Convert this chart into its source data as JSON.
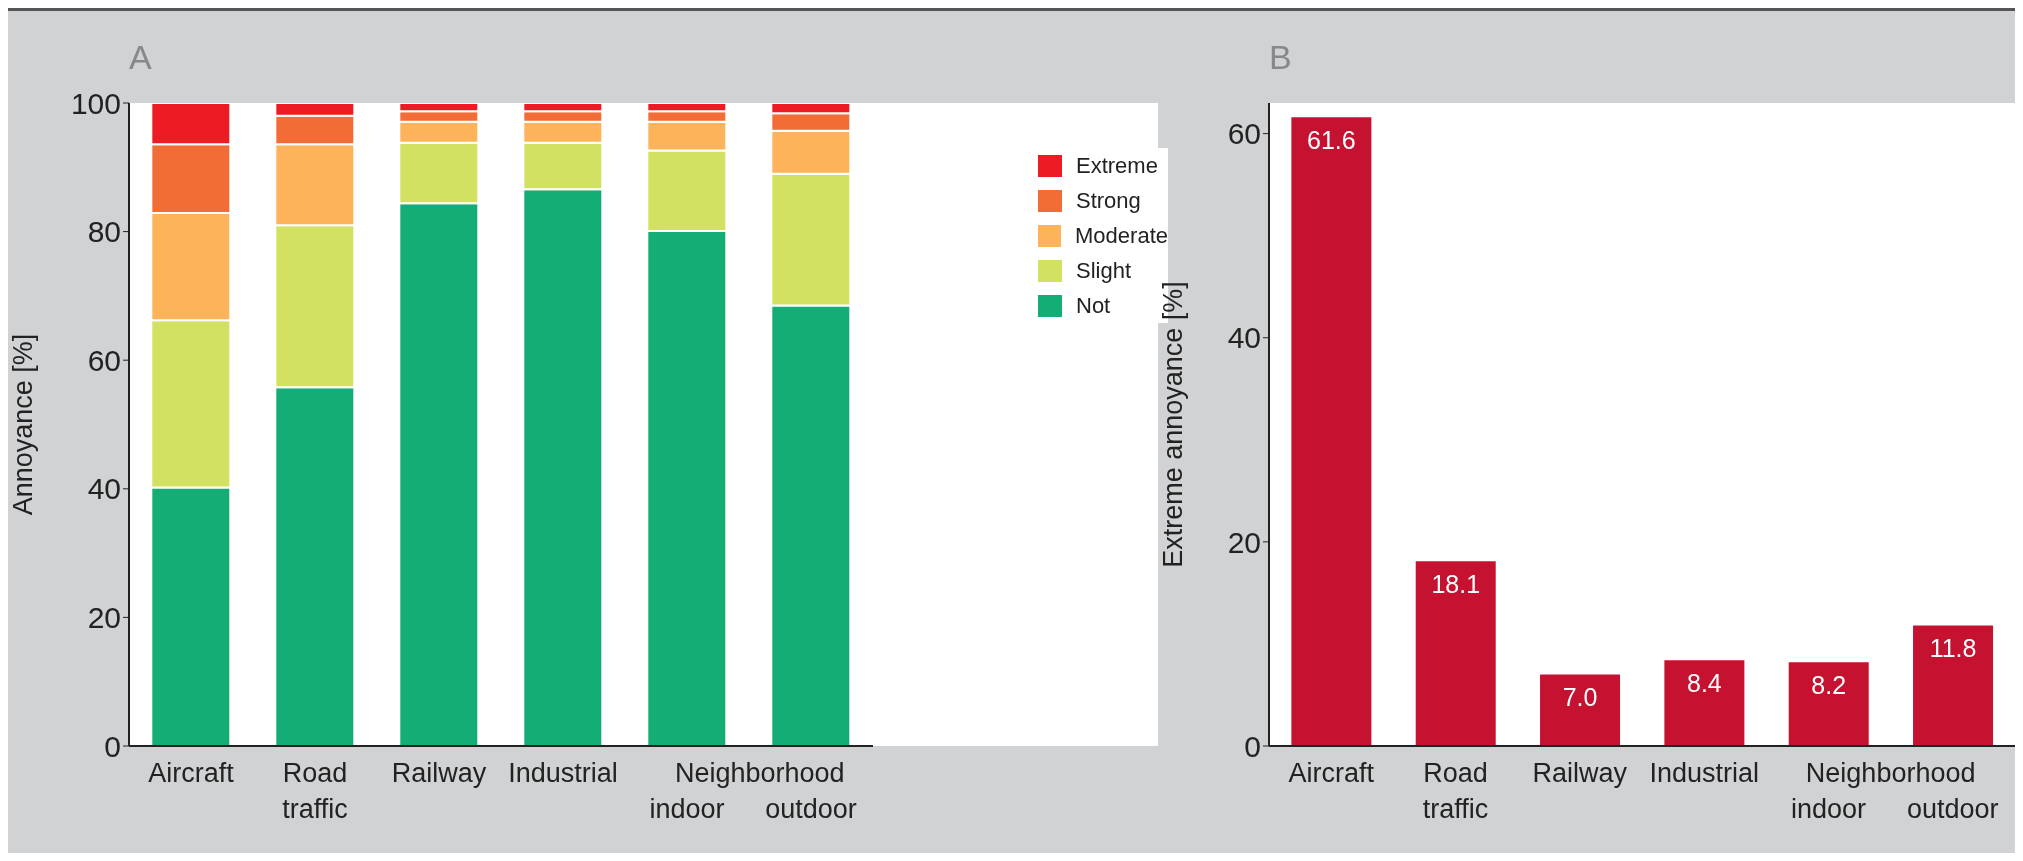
{
  "chart_data": [
    {
      "type": "bar",
      "title": "A",
      "ylabel": "Annoyance [%]",
      "categories": [
        "Aircraft",
        "Road traffic",
        "Railway",
        "Industrial",
        "indoor",
        "outdoor"
      ],
      "annotations": [
        "Neighborhood"
      ],
      "stacked": true,
      "ylim": [
        0,
        100
      ],
      "yticks": [
        0,
        20,
        40,
        60,
        80,
        100
      ],
      "grid": false,
      "legend": "top right",
      "series": [
        {
          "name": "Not",
          "color": "#14ad76",
          "values": [
            40.2,
            55.8,
            84.4,
            86.6,
            80.1,
            68.5
          ]
        },
        {
          "name": "Slight",
          "color": "#d3e162",
          "values": [
            26.0,
            25.2,
            9.4,
            7.2,
            12.5,
            20.5
          ]
        },
        {
          "name": "Moderate",
          "color": "#fdb35a",
          "values": [
            16.7,
            12.6,
            3.3,
            3.3,
            4.5,
            6.7
          ]
        },
        {
          "name": "Strong",
          "color": "#f26d35",
          "values": [
            10.7,
            4.4,
            1.6,
            1.6,
            1.6,
            2.7
          ]
        },
        {
          "name": "Extreme",
          "color": "#ed1c24",
          "values": [
            6.4,
            2.0,
            1.3,
            1.3,
            1.3,
            1.6
          ]
        }
      ]
    },
    {
      "type": "bar",
      "title": "B",
      "ylabel": "Extreme annoyance [%]",
      "categories": [
        "Aircraft",
        "Road traffic",
        "Railway",
        "Industrial",
        "indoor",
        "outdoor"
      ],
      "annotations": [
        "Neighborhood"
      ],
      "ylim": [
        0,
        63
      ],
      "yticks": [
        0,
        20,
        40,
        60
      ],
      "grid": false,
      "legend": false,
      "data_labels": true,
      "values": [
        61.6,
        18.1,
        7.0,
        8.4,
        8.2,
        11.8
      ],
      "color": "#c41230",
      "value_labels": [
        "61.6",
        "18.1",
        "7.0",
        "8.4",
        "8.2",
        "11.8"
      ]
    }
  ]
}
